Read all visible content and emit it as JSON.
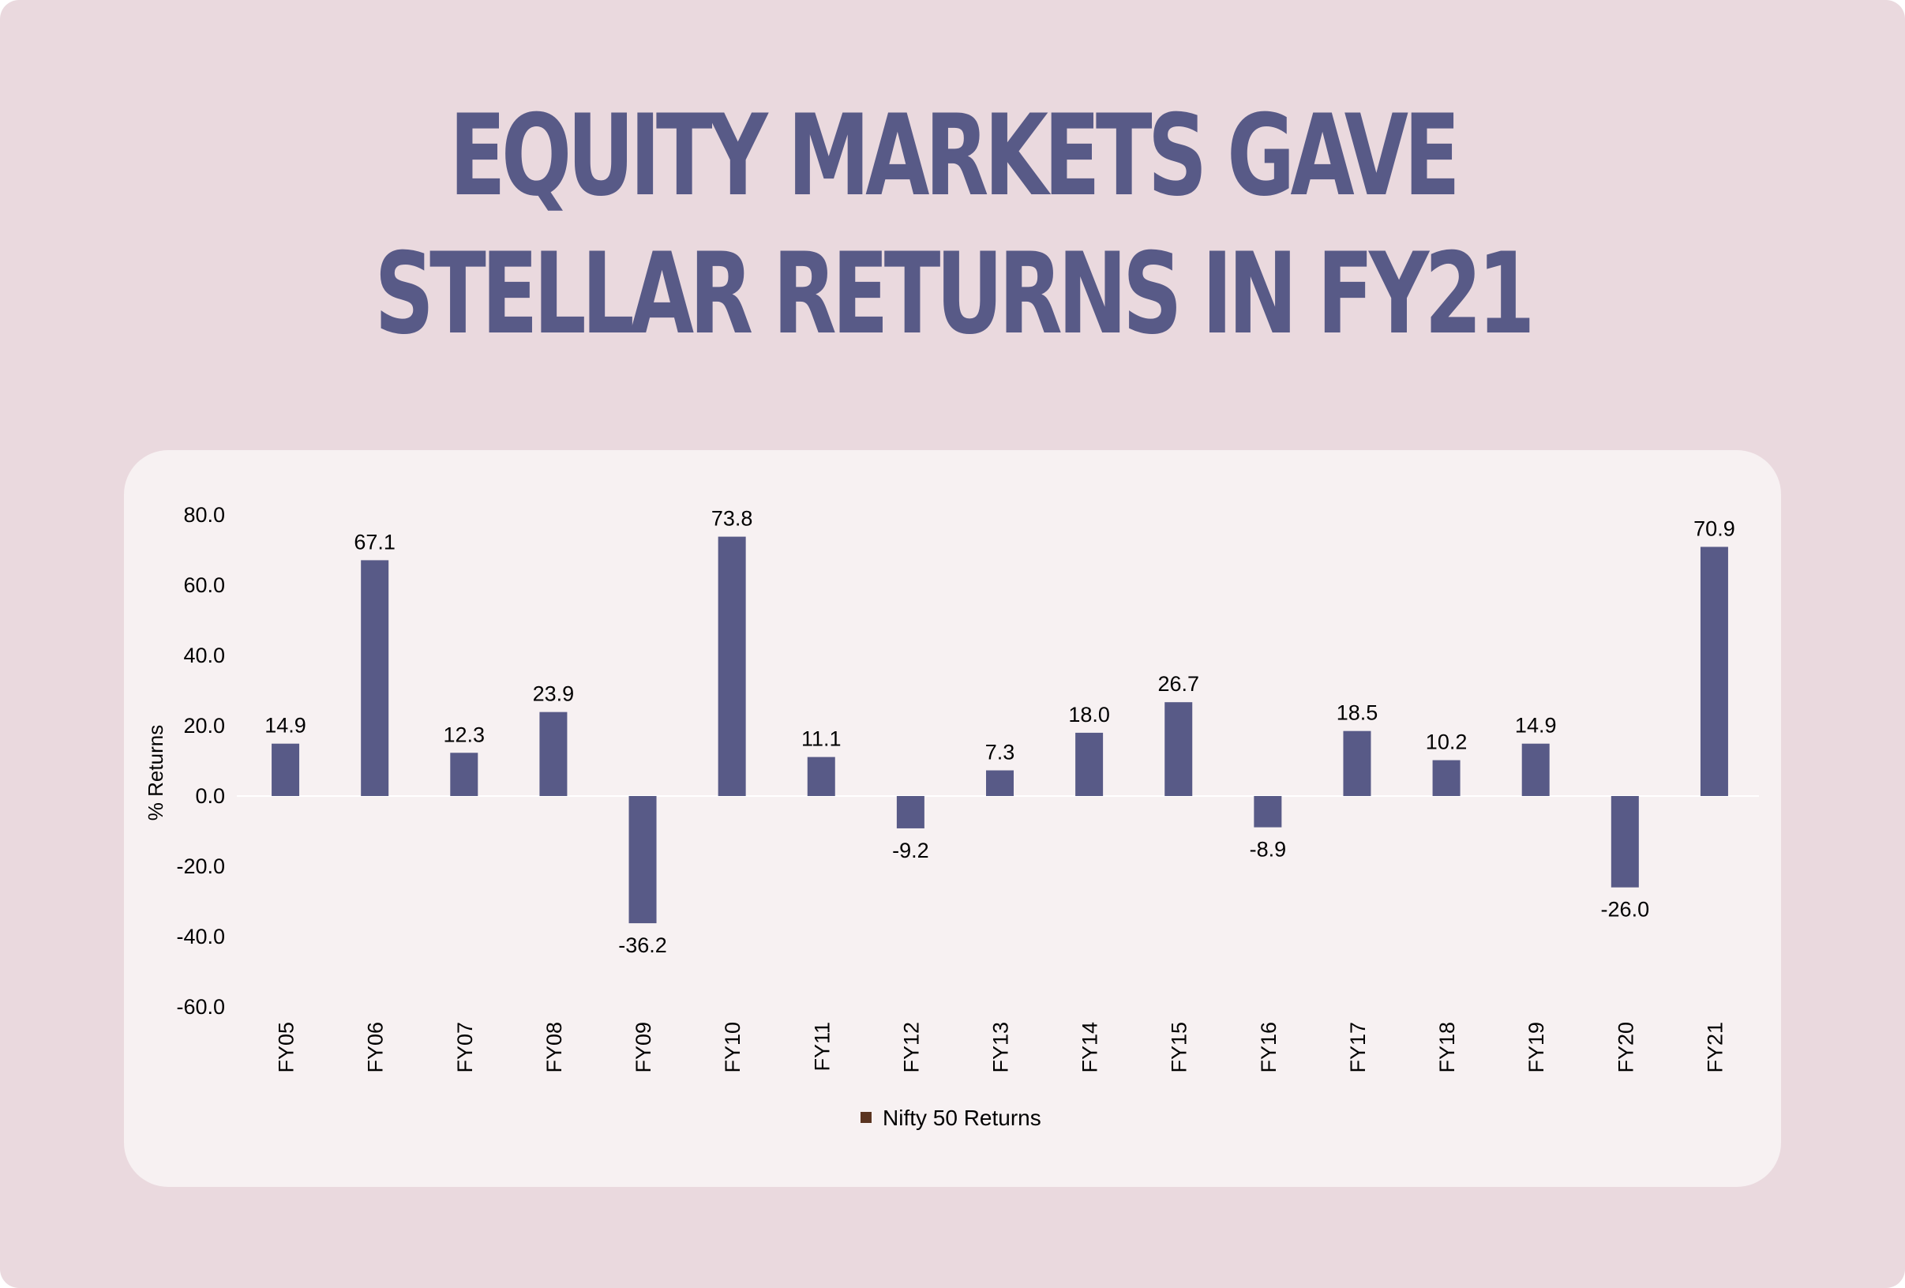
{
  "title": {
    "line1": "EQUITY MARKETS GAVE",
    "line2": "STELLAR RETURNS IN FY21"
  },
  "colors": {
    "background": "#ead9de",
    "card": "#f7f1f2",
    "bar": "#585a87",
    "title": "#585a87",
    "legend_marker": "#5a3420"
  },
  "chart_data": {
    "type": "bar",
    "title": "EQUITY MARKETS GAVE STELLAR RETURNS IN FY21",
    "categories": [
      "FY05",
      "FY06",
      "FY07",
      "FY08",
      "FY09",
      "FY10",
      "FY11",
      "FY12",
      "FY13",
      "FY14",
      "FY15",
      "FY16",
      "FY17",
      "FY18",
      "FY19",
      "FY20",
      "FY21"
    ],
    "series": [
      {
        "name": "Nifty 50 Returns",
        "values": [
          14.9,
          67.1,
          12.3,
          23.9,
          -36.2,
          73.8,
          11.1,
          -9.2,
          7.3,
          18.0,
          26.7,
          -8.9,
          18.5,
          10.2,
          14.9,
          -26.0,
          70.9
        ]
      }
    ],
    "data_labels": [
      "14.9",
      "67.1",
      "12.3",
      "23.9",
      "-36.2",
      "73.8",
      "11.1",
      "-9.2",
      "7.3",
      "18.0",
      "26.7",
      "-8.9",
      "18.5",
      "10.2",
      "14.9",
      "-26.0",
      "70.9"
    ],
    "xlabel": "",
    "ylabel": "% Returns",
    "ylim": [
      -60,
      80
    ],
    "yticks": [
      80,
      60,
      40,
      20,
      0,
      -20,
      -40,
      -60
    ],
    "ytick_labels": [
      "80.0",
      "60.0",
      "40.0",
      "20.0",
      "0.0",
      "-20.0",
      "-40.0",
      "-60.0"
    ],
    "grid": false,
    "legend": {
      "placement": "bottom-center",
      "entries": [
        "Nifty 50 Returns"
      ]
    }
  }
}
